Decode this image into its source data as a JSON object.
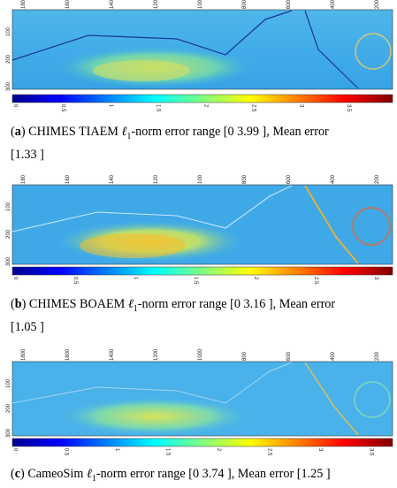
{
  "figure": {
    "x_ticks": [
      "1800",
      "1600",
      "1400",
      "1200",
      "1000",
      "800",
      "600",
      "400",
      "200"
    ],
    "y_ticks": [
      "100",
      "200",
      "300"
    ],
    "panels": [
      {
        "label": "a",
        "caption_method": "CHIMES TIAEM",
        "caption_norm": "ℓ",
        "caption_norm_sub": "1",
        "caption_range": "-norm error range [0 3.99 ], Mean error",
        "caption_mean": "[1.33 ]",
        "colorbar_ticks": [
          "0",
          "0.5",
          "1",
          "1.5",
          "2",
          "2.5",
          "3",
          "3.5"
        ],
        "colorbar_max": 3.99,
        "mean_error": 1.33
      },
      {
        "label": "b",
        "caption_method": "CHIMES BOAEM",
        "caption_norm": "ℓ",
        "caption_norm_sub": "1",
        "caption_range": "-norm error range [0 3.16 ], Mean error",
        "caption_mean": "[1.05 ]",
        "colorbar_ticks": [
          "0",
          "0.5",
          "1",
          "1.5",
          "2",
          "2.5",
          "3"
        ],
        "colorbar_max": 3.16,
        "mean_error": 1.05
      },
      {
        "label": "c",
        "caption_method": "CameoSim",
        "caption_norm": "ℓ",
        "caption_norm_sub": "1",
        "caption_range": "-norm error range [0 3.74 ], Mean error [1.25 ]",
        "caption_mean": "",
        "colorbar_ticks": [
          "0",
          "0.5",
          "1",
          "1.5",
          "2",
          "2.5",
          "3",
          "3.5"
        ],
        "colorbar_max": 3.74,
        "mean_error": 1.25
      }
    ],
    "colormap": [
      "#00008f",
      "#0000ff",
      "#0080ff",
      "#00ffff",
      "#80ff80",
      "#ffff00",
      "#ff8000",
      "#ff0000",
      "#800000"
    ]
  }
}
